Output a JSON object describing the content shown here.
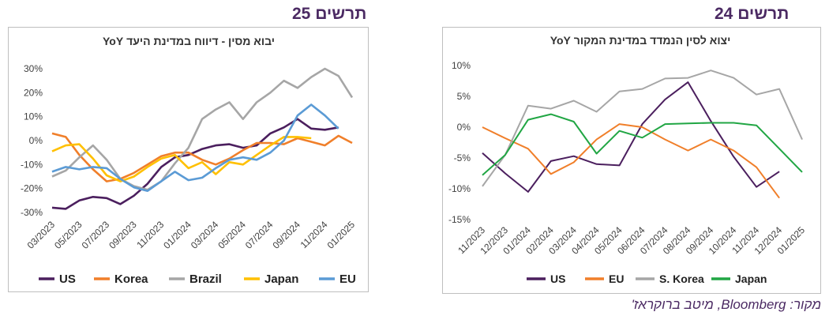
{
  "labels": {
    "left_fig": "תרשים 25",
    "right_fig": "תרשים 24"
  },
  "source": "מקור: Bloomberg, מיטב ברוקראז'",
  "chart_data": [
    {
      "type": "line",
      "title": "יבוא מסין - דיווח במדינת היעד YoY",
      "ylim": [
        -30,
        30
      ],
      "yticks": [
        "-30%",
        "-20%",
        "-10%",
        "0%",
        "10%",
        "20%",
        "30%"
      ],
      "x": [
        "03/2023",
        "04/2023",
        "05/2023",
        "06/2023",
        "07/2023",
        "08/2023",
        "09/2023",
        "10/2023",
        "11/2023",
        "12/2023",
        "01/2024",
        "02/2024",
        "03/2024",
        "04/2024",
        "05/2024",
        "06/2024",
        "07/2024",
        "08/2024",
        "09/2024",
        "10/2024",
        "11/2024",
        "12/2024",
        "01/2025"
      ],
      "xtick_labels": [
        "03/2023",
        "05/2023",
        "07/2023",
        "09/2023",
        "11/2023",
        "01/2024",
        "03/2024",
        "05/2024",
        "07/2024",
        "09/2024",
        "11/2024",
        "01/2025"
      ],
      "legend_position": "bottom",
      "series": [
        {
          "name": "US",
          "color": "#4b1f5e",
          "values": [
            -28,
            -28.5,
            -25,
            -23.5,
            -24,
            -26.5,
            -23,
            -18,
            -11,
            -7,
            -6,
            -3.5,
            -2,
            -1.5,
            -3,
            -2,
            3,
            5.5,
            9,
            5,
            4.5,
            5.5,
            null
          ]
        },
        {
          "name": "Korea",
          "color": "#f07f2a",
          "values": [
            3,
            1.5,
            -6,
            -12,
            -17,
            -16,
            -13.5,
            -10,
            -6.5,
            -5,
            -5,
            -8,
            -10,
            -7.5,
            -4,
            -1,
            -1,
            -1.5,
            1,
            -0.5,
            -2,
            2,
            -1
          ]
        },
        {
          "name": "Brazil",
          "color": "#a6a6a6",
          "values": [
            -15,
            -12.5,
            -7,
            -2,
            -8,
            -16,
            -19,
            -20.5,
            -17,
            -9.5,
            -3,
            9,
            13,
            16,
            9,
            16,
            20,
            25,
            22,
            26.5,
            30,
            27,
            18
          ]
        },
        {
          "name": "Japan",
          "color": "#ffc000",
          "values": [
            -4.5,
            -2,
            -1.5,
            -7.5,
            -14.5,
            -17,
            -15,
            -11,
            -7.5,
            -6,
            -11.5,
            -9,
            -14,
            -9,
            -10,
            -6,
            -2,
            1.5,
            1.5,
            1,
            null,
            null,
            null
          ]
        },
        {
          "name": "EU",
          "color": "#5b9bd5",
          "values": [
            -13,
            -11,
            -12,
            -11,
            -11.5,
            -16,
            -19.5,
            -21,
            -17,
            -13,
            -16.5,
            -15.5,
            -11.5,
            -8,
            -7,
            -8,
            -5,
            0,
            10.5,
            15,
            10.5,
            5,
            null
          ]
        }
      ]
    },
    {
      "type": "line",
      "title": "יצוא לסין הנמדד במדינת המקור YoY",
      "ylim": [
        -15,
        10
      ],
      "yticks": [
        "10%",
        "5%",
        "0%",
        "-5%",
        "-10%",
        "-15%"
      ],
      "x": [
        "11/2023",
        "12/2023",
        "01/2024",
        "02/2024",
        "03/2024",
        "04/2024",
        "05/2024",
        "06/2024",
        "07/2024",
        "08/2024",
        "09/2024",
        "10/2024",
        "11/2024",
        "12/2024",
        "01/2025"
      ],
      "legend_position": "bottom",
      "series": [
        {
          "name": "US",
          "color": "#4b1f5e",
          "values": [
            -4.2,
            -7.5,
            -10.5,
            -5.5,
            -4.7,
            -6,
            -6.2,
            0.5,
            4.5,
            7.3,
            1,
            -4.8,
            -9.7,
            -7.2,
            null
          ]
        },
        {
          "name": "EU",
          "color": "#f07f2a",
          "values": [
            0,
            -1.8,
            -3.5,
            -7.6,
            -5.7,
            -2,
            0.5,
            0,
            -2,
            -3.8,
            -2,
            -3.8,
            -6.5,
            -11.5,
            null
          ]
        },
        {
          "name": "S. Korea",
          "color": "#a6a6a6",
          "values": [
            -9.6,
            -4.5,
            3.5,
            3,
            4.3,
            2.5,
            5.8,
            6.2,
            7.9,
            8,
            9.2,
            8,
            5.3,
            6.2,
            -2
          ]
        },
        {
          "name": "Japan",
          "color": "#21a644",
          "values": [
            -7.8,
            -4.5,
            1.2,
            2.1,
            0.9,
            -4.3,
            -0.6,
            -1.7,
            0.5,
            0.6,
            0.7,
            0.7,
            0.3,
            -3.5,
            -7.3
          ]
        }
      ]
    }
  ]
}
